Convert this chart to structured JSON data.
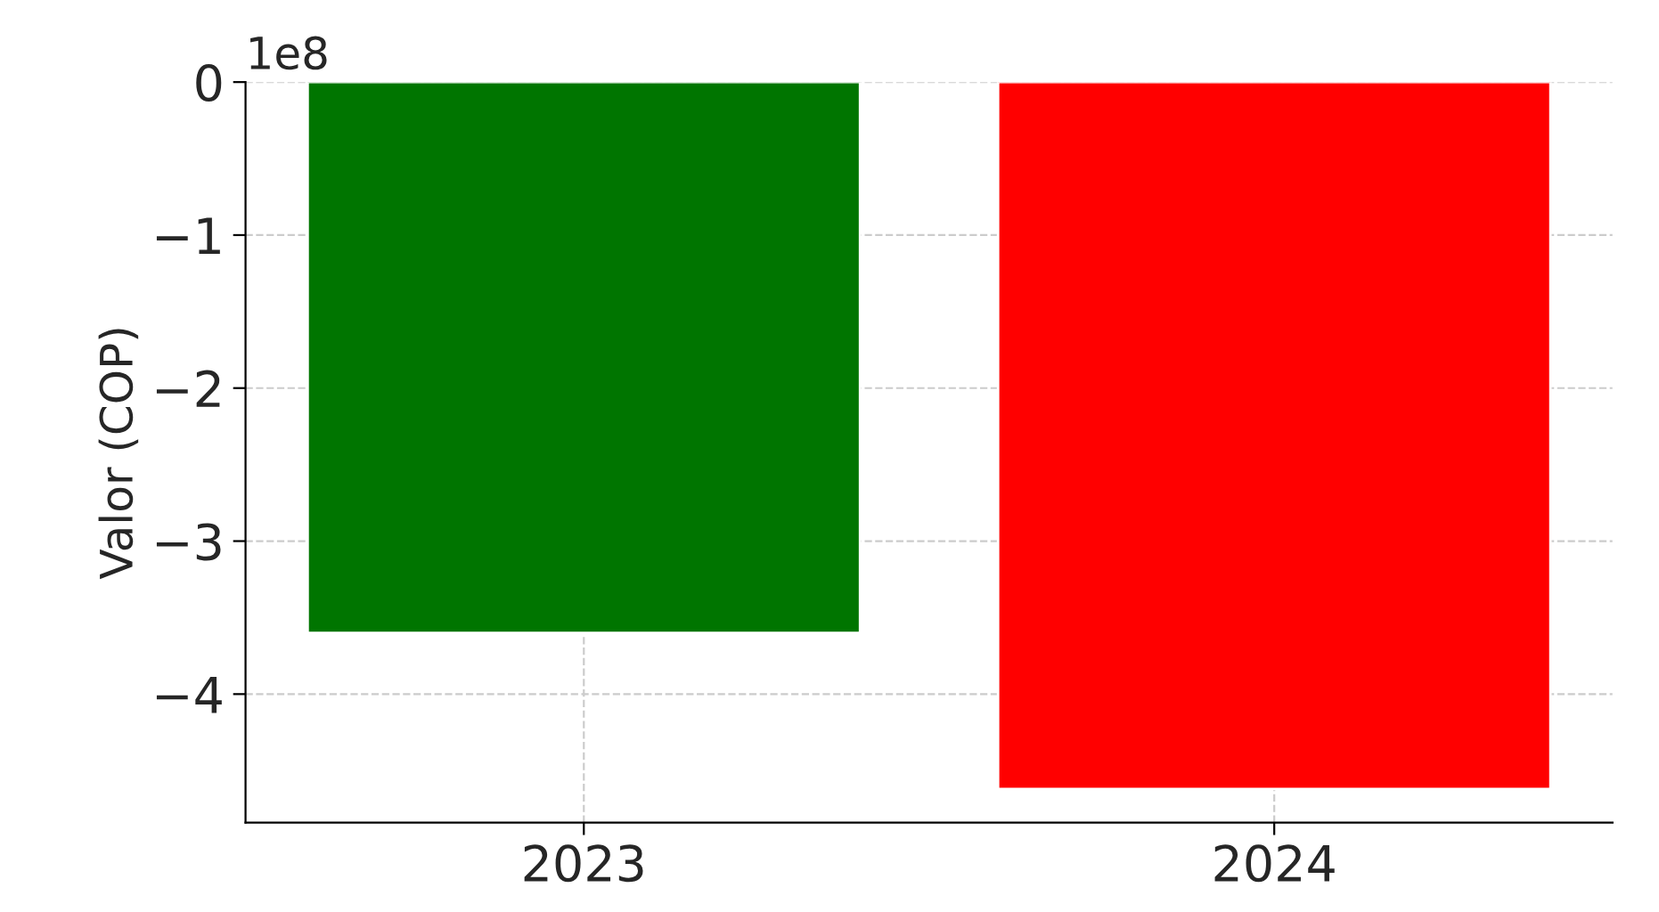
{
  "chart_data": {
    "type": "bar",
    "ylabel": "Valor (COP)",
    "annotations": [
      "1e8"
    ],
    "categories": [
      "2023",
      "2024"
    ],
    "values": [
      -3.6,
      -4.62
    ],
    "colors": [
      "#007500",
      "#ff0000"
    ],
    "ylim": [
      -4.84,
      0
    ],
    "yticks": [
      0,
      -1,
      -2,
      -3,
      -4
    ],
    "grid": true,
    "line_style": "dashed"
  }
}
